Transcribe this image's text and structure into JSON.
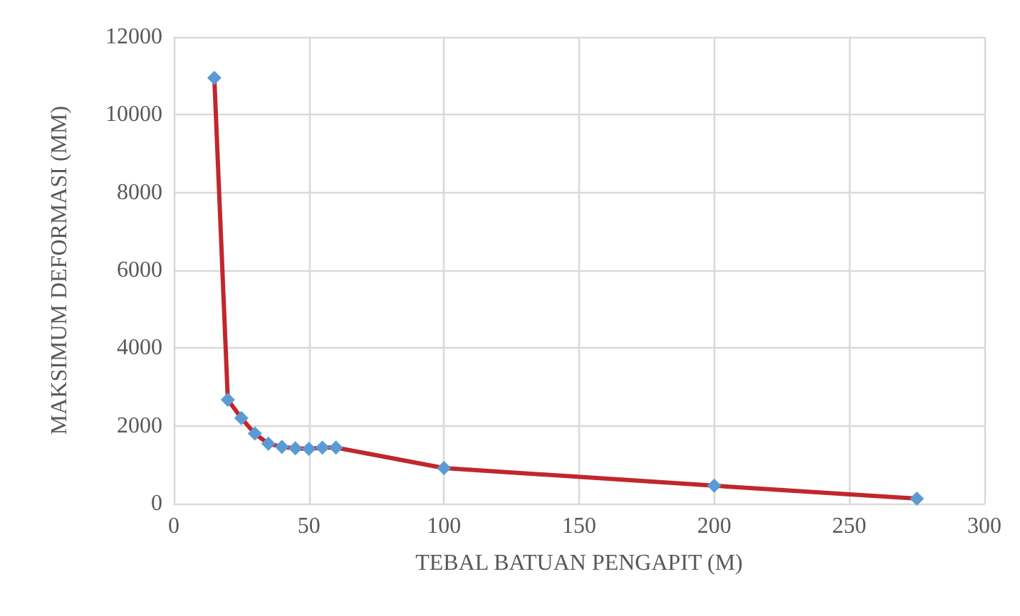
{
  "chart_data": {
    "type": "line",
    "xlabel": "TEBAL BATUAN PENGAPIT (M)",
    "ylabel": "MAKSIMUM DEFORMASI (MM)",
    "x": [
      15,
      20,
      25,
      30,
      35,
      40,
      45,
      50,
      55,
      60,
      100,
      200,
      275
    ],
    "series": [
      {
        "color": "#c0272d",
        "colors": [
          "#5b9bd5",
          "#5b9bd5",
          "#5b9bd5",
          "#5b9bd5",
          "#5b9bd5",
          "#5b9bd5",
          "#5b9bd5",
          "#5b9bd5",
          "#5b9bd5",
          "#5b9bd5",
          "#5b9bd5",
          "#5b9bd5",
          "#5b9bd5"
        ],
        "values": [
          10950,
          2670,
          2200,
          1800,
          1540,
          1460,
          1420,
          1410,
          1440,
          1440,
          915,
          460,
          130
        ]
      }
    ],
    "xlim": [
      0,
      300
    ],
    "xticks": [
      0,
      50,
      100,
      150,
      200,
      250,
      300
    ],
    "ylim": [
      0,
      12000
    ],
    "yticks": [
      0,
      2000,
      4000,
      6000,
      8000,
      10000,
      12000
    ],
    "grid": true,
    "marker": "diamond",
    "line_style": "solid"
  }
}
